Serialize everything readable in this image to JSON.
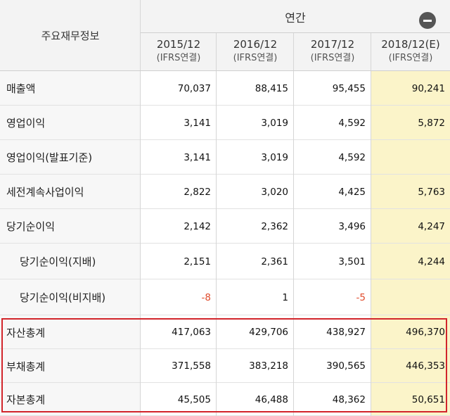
{
  "header": {
    "corner_label": "주요재무정보",
    "annual_label": "연간",
    "periods": [
      {
        "year": "2015/12",
        "basis": "(IFRS연결)"
      },
      {
        "year": "2016/12",
        "basis": "(IFRS연결)"
      },
      {
        "year": "2017/12",
        "basis": "(IFRS연결)"
      },
      {
        "year": "2018/12(E)",
        "basis": "(IFRS연결)"
      }
    ],
    "collapse_icon": "minus-circle-icon"
  },
  "rows": [
    {
      "label": "매출액",
      "values": [
        "70,037",
        "88,415",
        "95,455",
        "90,241"
      ]
    },
    {
      "label": "영업이익",
      "values": [
        "3,141",
        "3,019",
        "4,592",
        "5,872"
      ]
    },
    {
      "label": "영업이익(발표기준)",
      "values": [
        "3,141",
        "3,019",
        "4,592",
        ""
      ]
    },
    {
      "label": "세전계속사업이익",
      "values": [
        "2,822",
        "3,020",
        "4,425",
        "5,763"
      ]
    },
    {
      "label": "당기순이익",
      "values": [
        "2,142",
        "2,362",
        "3,496",
        "4,247"
      ]
    },
    {
      "label": "당기순이익(지배)",
      "values": [
        "2,151",
        "2,361",
        "3,501",
        "4,244"
      ]
    },
    {
      "label": "당기순이익(비지배)",
      "values": [
        "-8",
        "1",
        "-5",
        ""
      ]
    },
    {
      "label": "자산총계",
      "values": [
        "417,063",
        "429,706",
        "438,927",
        "496,370"
      ]
    },
    {
      "label": "부채총계",
      "values": [
        "371,558",
        "383,218",
        "390,565",
        "446,353"
      ]
    },
    {
      "label": "자본총계",
      "values": [
        "45,505",
        "46,488",
        "48,362",
        "50,651"
      ]
    }
  ],
  "colors": {
    "estimate_column_bg": "#fbf4c9",
    "negative_value": "#e04a2a",
    "highlight_border": "#d2252b"
  }
}
